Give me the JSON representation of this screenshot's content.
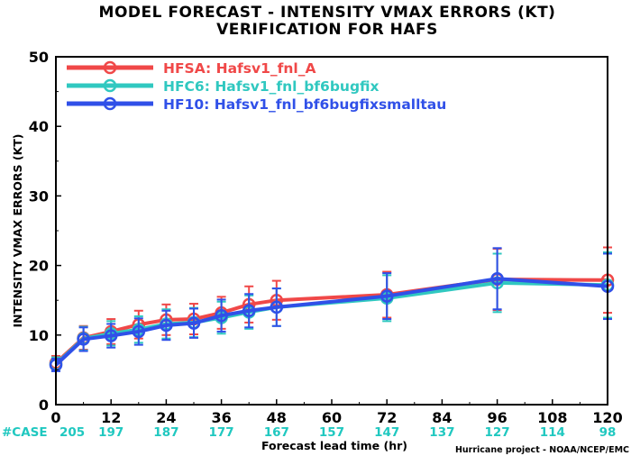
{
  "chart_data": {
    "type": "line",
    "title": "MODEL FORECAST - INTENSITY VMAX ERRORS (KT)",
    "subtitle": "VERIFICATION FOR HAFS",
    "xlabel": "Forecast lead time (hr)",
    "ylabel": "INTENSITY VMAX ERRORS (KT)",
    "xlim": [
      0,
      120
    ],
    "ylim": [
      0,
      50
    ],
    "x_ticks": [
      0,
      12,
      24,
      36,
      48,
      60,
      72,
      84,
      96,
      108,
      120
    ],
    "y_ticks": [
      0,
      10,
      20,
      30,
      40,
      50
    ],
    "grid": false,
    "legend_position": "top-left",
    "case_label": "#CASE",
    "case_counts": [
      {
        "x": 0,
        "label": "205"
      },
      {
        "x": 12,
        "label": "197"
      },
      {
        "x": 24,
        "label": "187"
      },
      {
        "x": 36,
        "label": "177"
      },
      {
        "x": 48,
        "label": "167"
      },
      {
        "x": 60,
        "label": "157"
      },
      {
        "x": 72,
        "label": "147"
      },
      {
        "x": 84,
        "label": "137"
      },
      {
        "x": 96,
        "label": "127"
      },
      {
        "x": 108,
        "label": "114"
      },
      {
        "x": 120,
        "label": "98"
      }
    ],
    "series": [
      {
        "name": "HFSA: Hafsv1_fnl_A",
        "color": "#f04848",
        "x": [
          0,
          6,
          12,
          18,
          24,
          30,
          36,
          42,
          48,
          72,
          96,
          120
        ],
        "y": [
          6.0,
          9.6,
          10.5,
          11.5,
          12.2,
          12.3,
          13.2,
          14.4,
          15.0,
          15.8,
          18.0,
          17.9
        ],
        "err_low": [
          5.0,
          7.9,
          8.7,
          9.5,
          10.0,
          10.1,
          10.9,
          11.8,
          12.2,
          12.5,
          13.6,
          13.2
        ],
        "err_high": [
          7.0,
          11.3,
          12.3,
          13.5,
          14.4,
          14.5,
          15.5,
          17.0,
          17.8,
          19.1,
          22.4,
          22.6
        ]
      },
      {
        "name": "HFC6: Hafsv1_fnl_bf6bugfix",
        "color": "#30c8c0",
        "x": [
          0,
          6,
          12,
          18,
          24,
          30,
          36,
          42,
          48,
          72,
          96,
          120
        ],
        "y": [
          5.8,
          9.5,
          10.2,
          10.8,
          11.6,
          11.8,
          12.5,
          13.3,
          14.0,
          15.3,
          17.5,
          17.2
        ],
        "err_low": [
          4.9,
          7.8,
          8.5,
          8.9,
          9.5,
          9.7,
          10.2,
          10.9,
          11.3,
          12.0,
          13.3,
          12.5
        ],
        "err_high": [
          6.8,
          11.2,
          12.0,
          12.7,
          13.7,
          13.9,
          14.8,
          15.7,
          16.7,
          18.6,
          21.7,
          21.9
        ]
      },
      {
        "name": "HF10: Hafsv1_fnl_bf6bugfixsmalltau",
        "color": "#3050e8",
        "x": [
          0,
          6,
          12,
          18,
          24,
          30,
          36,
          42,
          48,
          72,
          96,
          120
        ],
        "y": [
          5.7,
          9.4,
          9.9,
          10.5,
          11.4,
          11.7,
          12.8,
          13.5,
          14.0,
          15.6,
          18.1,
          17.0
        ],
        "err_low": [
          4.8,
          7.7,
          8.2,
          8.6,
          9.3,
          9.6,
          10.5,
          11.1,
          11.3,
          12.3,
          13.7,
          12.3
        ],
        "err_high": [
          6.6,
          11.1,
          11.6,
          12.4,
          13.5,
          13.8,
          15.1,
          15.9,
          16.7,
          18.9,
          22.5,
          21.7
        ]
      }
    ]
  },
  "credit": "Hurricane project - NOAA/NCEP/EMC"
}
